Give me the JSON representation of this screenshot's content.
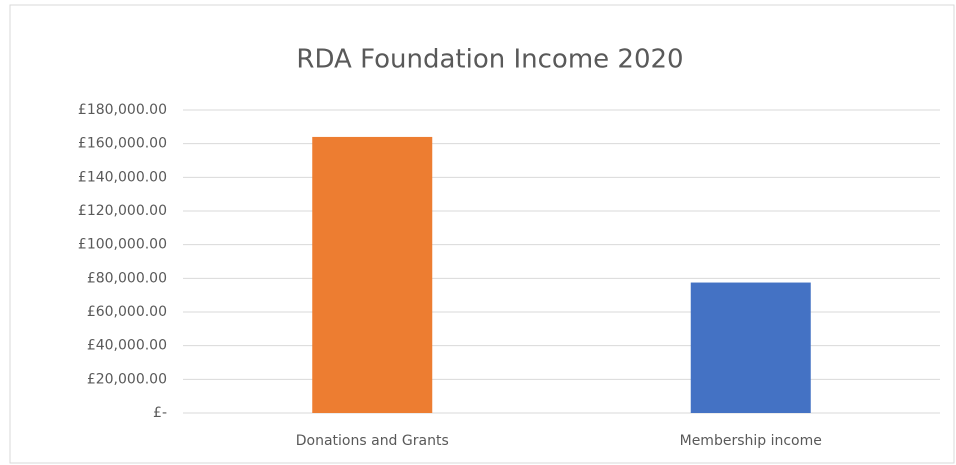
{
  "chart_data": {
    "type": "bar",
    "title": "RDA Foundation Income 2020",
    "categories": [
      "Donations and Grants",
      "Membership income"
    ],
    "values": [
      164000,
      77500
    ],
    "colors": [
      "#ed7d31",
      "#4472c4"
    ],
    "ylim": [
      0,
      180000
    ],
    "yticks": [
      {
        "value": 0,
        "label": "£-"
      },
      {
        "value": 20000,
        "label": "£20,000.00"
      },
      {
        "value": 40000,
        "label": "£40,000.00"
      },
      {
        "value": 60000,
        "label": "£60,000.00"
      },
      {
        "value": 80000,
        "label": "£80,000.00"
      },
      {
        "value": 100000,
        "label": "£100,000.00"
      },
      {
        "value": 120000,
        "label": "£120,000.00"
      },
      {
        "value": 140000,
        "label": "£140,000.00"
      },
      {
        "value": 160000,
        "label": "£160,000.00"
      },
      {
        "value": 180000,
        "label": "£180,000.00"
      }
    ],
    "grid": true
  }
}
